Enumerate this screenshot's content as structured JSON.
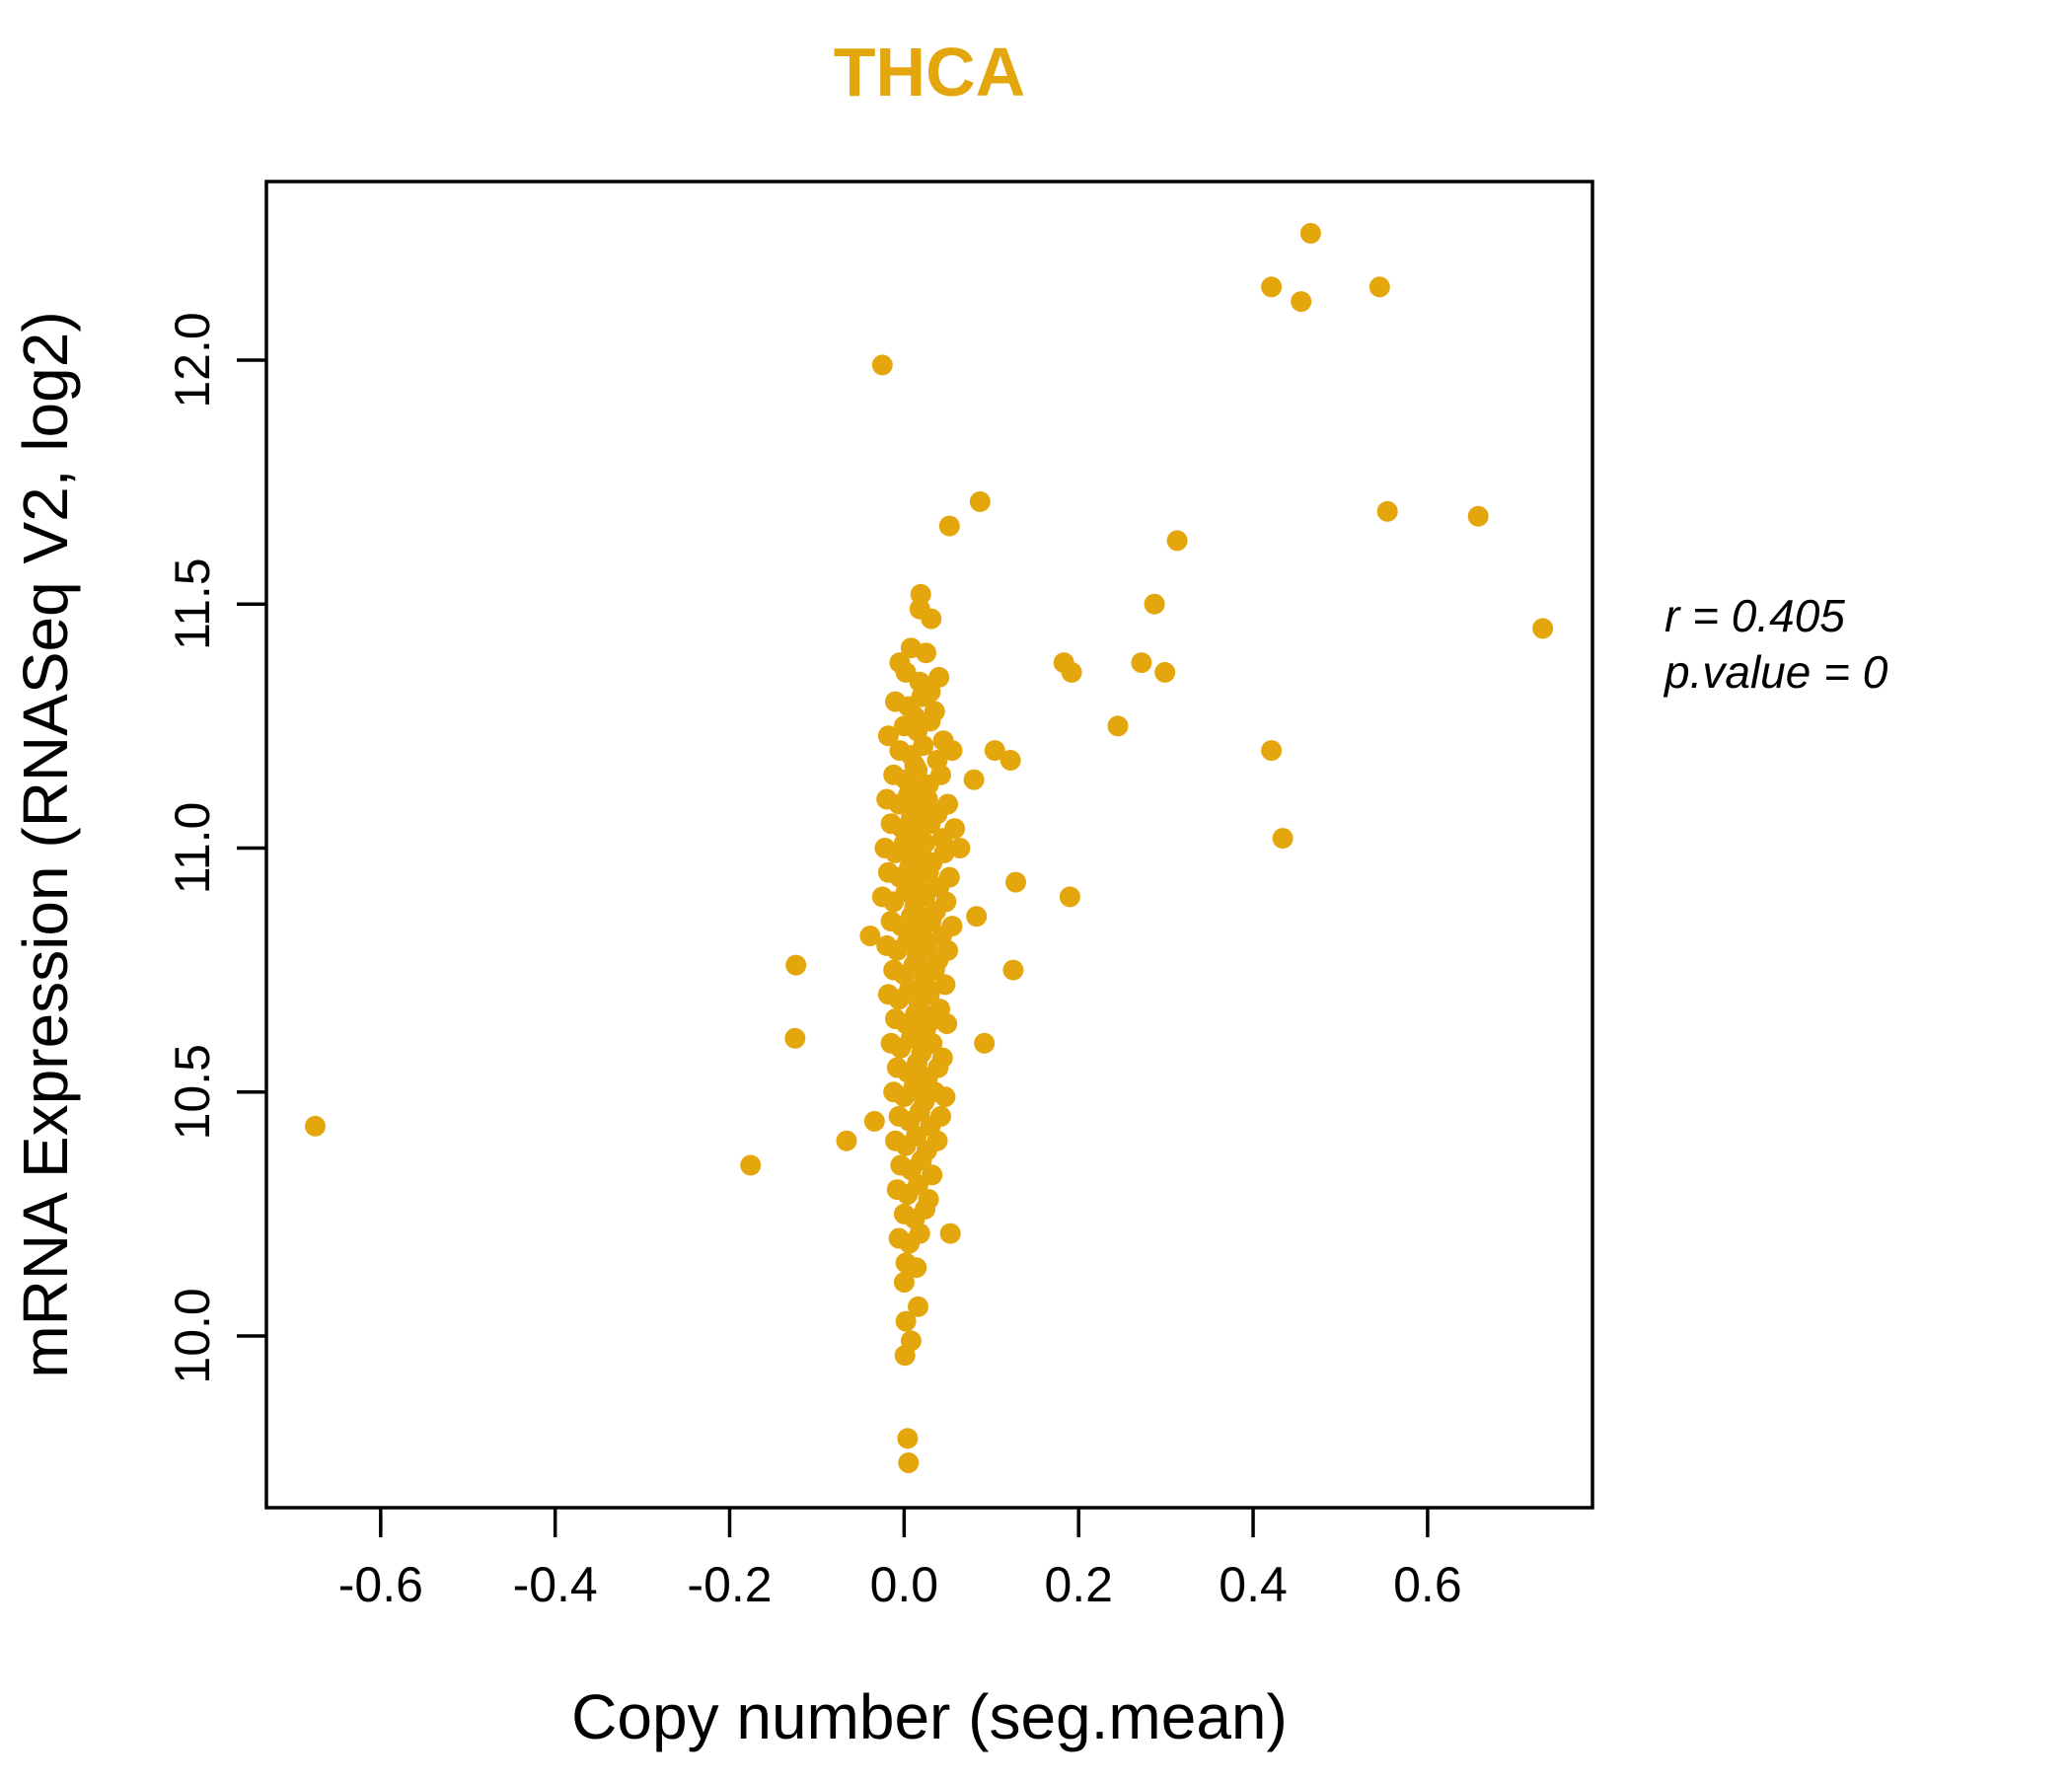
{
  "chart_data": {
    "type": "scatter",
    "title": "THCA",
    "title_color": "#E4A60D",
    "xlabel": "Copy number (seg.mean)",
    "ylabel": "mRNA Expression (RNASeq V2, log2)",
    "xlim": [
      -0.731,
      0.789
    ],
    "ylim": [
      9.648,
      12.366
    ],
    "x_ticks": [
      -0.6,
      -0.4,
      -0.2,
      0.0,
      0.2,
      0.4,
      0.6
    ],
    "x_tick_labels": [
      "-0.6",
      "-0.4",
      "-0.2",
      "0.0",
      "0.2",
      "0.4",
      "0.6"
    ],
    "y_ticks": [
      10.0,
      10.5,
      11.0,
      11.5,
      12.0
    ],
    "y_tick_labels": [
      "10.0",
      "10.5",
      "11.0",
      "11.5",
      "12.0"
    ],
    "grid": false,
    "legend": "none",
    "point_color": "#E4A60D",
    "point_radius": 10.5,
    "correlation_r": 0.405,
    "p_value": 0,
    "annotation": {
      "r_text": "r = 0.405",
      "p_text": "p.value = 0"
    },
    "points": [
      [
        -0.675,
        10.43
      ],
      [
        -0.176,
        10.35
      ],
      [
        -0.125,
        10.61
      ],
      [
        -0.124,
        10.76
      ],
      [
        -0.066,
        10.4
      ],
      [
        -0.034,
        10.44
      ],
      [
        -0.039,
        10.82
      ],
      [
        -0.025,
        11.99
      ],
      [
        0.087,
        11.71
      ],
      [
        0.052,
        11.66
      ],
      [
        0.019,
        11.52
      ],
      [
        0.018,
        11.49
      ],
      [
        0.031,
        11.47
      ],
      [
        0.313,
        11.63
      ],
      [
        0.287,
        11.5
      ],
      [
        0.183,
        11.38
      ],
      [
        0.192,
        11.36
      ],
      [
        0.272,
        11.38
      ],
      [
        0.299,
        11.36
      ],
      [
        0.245,
        11.25
      ],
      [
        0.421,
        11.2
      ],
      [
        0.122,
        11.18
      ],
      [
        0.104,
        11.2
      ],
      [
        0.434,
        11.02
      ],
      [
        0.128,
        10.93
      ],
      [
        0.19,
        10.9
      ],
      [
        0.08,
        11.14
      ],
      [
        0.064,
        11.0
      ],
      [
        0.083,
        10.86
      ],
      [
        0.125,
        10.75
      ],
      [
        0.092,
        10.6
      ],
      [
        0.053,
        10.21
      ],
      [
        0.466,
        12.26
      ],
      [
        0.421,
        12.15
      ],
      [
        0.455,
        12.12
      ],
      [
        0.545,
        12.15
      ],
      [
        0.554,
        11.69
      ],
      [
        0.658,
        11.68
      ],
      [
        0.732,
        11.45
      ],
      [
        0.0,
        10.11
      ],
      [
        0.016,
        10.06
      ],
      [
        0.002,
        10.03
      ],
      [
        0.008,
        9.99
      ],
      [
        0.001,
        9.96
      ],
      [
        0.004,
        9.79
      ],
      [
        0.005,
        9.74
      ],
      [
        0.008,
        11.41
      ],
      [
        0.025,
        11.4
      ],
      [
        -0.005,
        11.38
      ],
      [
        0.002,
        11.36
      ],
      [
        0.018,
        11.34
      ],
      [
        0.04,
        11.35
      ],
      [
        0.03,
        11.32
      ],
      [
        -0.01,
        11.3
      ],
      [
        0.005,
        11.29
      ],
      [
        0.02,
        11.31
      ],
      [
        0.035,
        11.28
      ],
      [
        0.012,
        11.27
      ],
      [
        0.0,
        11.25
      ],
      [
        0.015,
        11.24
      ],
      [
        0.03,
        11.26
      ],
      [
        -0.018,
        11.23
      ],
      [
        0.045,
        11.22
      ],
      [
        -0.005,
        11.2
      ],
      [
        0.008,
        11.19
      ],
      [
        0.022,
        11.21
      ],
      [
        0.038,
        11.18
      ],
      [
        0.012,
        11.17
      ],
      [
        0.055,
        11.2
      ],
      [
        -0.012,
        11.15
      ],
      [
        0.002,
        11.14
      ],
      [
        0.015,
        11.16
      ],
      [
        0.028,
        11.13
      ],
      [
        0.042,
        11.15
      ],
      [
        0.02,
        11.12
      ],
      [
        0.008,
        11.11
      ],
      [
        -0.02,
        11.1
      ],
      [
        -0.006,
        11.09
      ],
      [
        0.005,
        11.11
      ],
      [
        0.016,
        11.08
      ],
      [
        0.027,
        11.1
      ],
      [
        0.038,
        11.07
      ],
      [
        0.05,
        11.09
      ],
      [
        0.01,
        11.06
      ],
      [
        -0.015,
        11.05
      ],
      [
        -0.002,
        11.04
      ],
      [
        0.008,
        11.06
      ],
      [
        0.018,
        11.03
      ],
      [
        0.03,
        11.05
      ],
      [
        0.044,
        11.02
      ],
      [
        0.024,
        11.01
      ],
      [
        0.058,
        11.04
      ],
      [
        -0.022,
        11.0
      ],
      [
        -0.01,
        10.99
      ],
      [
        0.0,
        11.01
      ],
      [
        0.01,
        10.98
      ],
      [
        0.02,
        11.0
      ],
      [
        0.032,
        10.97
      ],
      [
        0.046,
        10.99
      ],
      [
        0.026,
        10.96
      ],
      [
        0.015,
        10.95
      ],
      [
        -0.018,
        10.95
      ],
      [
        -0.005,
        10.94
      ],
      [
        0.006,
        10.96
      ],
      [
        0.016,
        10.93
      ],
      [
        0.028,
        10.95
      ],
      [
        0.04,
        10.92
      ],
      [
        0.052,
        10.94
      ],
      [
        0.022,
        10.91
      ],
      [
        0.012,
        10.9
      ],
      [
        -0.025,
        10.9
      ],
      [
        -0.012,
        10.89
      ],
      [
        0.002,
        10.91
      ],
      [
        0.012,
        10.88
      ],
      [
        0.024,
        10.9
      ],
      [
        0.036,
        10.87
      ],
      [
        0.048,
        10.89
      ],
      [
        0.018,
        10.86
      ],
      [
        0.03,
        10.85
      ],
      [
        -0.015,
        10.85
      ],
      [
        -0.003,
        10.84
      ],
      [
        0.008,
        10.86
      ],
      [
        0.019,
        10.83
      ],
      [
        0.031,
        10.85
      ],
      [
        0.043,
        10.82
      ],
      [
        0.025,
        10.81
      ],
      [
        0.055,
        10.84
      ],
      [
        -0.02,
        10.8
      ],
      [
        -0.008,
        10.79
      ],
      [
        0.004,
        10.81
      ],
      [
        0.015,
        10.78
      ],
      [
        0.027,
        10.8
      ],
      [
        0.039,
        10.77
      ],
      [
        0.021,
        10.76
      ],
      [
        0.05,
        10.79
      ],
      [
        -0.012,
        10.75
      ],
      [
        0.0,
        10.74
      ],
      [
        0.011,
        10.76
      ],
      [
        0.023,
        10.73
      ],
      [
        0.035,
        10.75
      ],
      [
        0.047,
        10.72
      ],
      [
        0.028,
        10.71
      ],
      [
        -0.018,
        10.7
      ],
      [
        -0.006,
        10.69
      ],
      [
        0.006,
        10.71
      ],
      [
        0.017,
        10.68
      ],
      [
        0.029,
        10.7
      ],
      [
        0.041,
        10.67
      ],
      [
        0.022,
        10.66
      ],
      [
        -0.01,
        10.65
      ],
      [
        0.002,
        10.64
      ],
      [
        0.013,
        10.66
      ],
      [
        0.025,
        10.63
      ],
      [
        0.037,
        10.65
      ],
      [
        0.019,
        10.62
      ],
      [
        0.049,
        10.64
      ],
      [
        -0.015,
        10.6
      ],
      [
        -0.004,
        10.59
      ],
      [
        0.008,
        10.61
      ],
      [
        0.02,
        10.58
      ],
      [
        0.032,
        10.6
      ],
      [
        0.044,
        10.57
      ],
      [
        -0.008,
        10.55
      ],
      [
        0.004,
        10.54
      ],
      [
        0.015,
        10.56
      ],
      [
        0.027,
        10.53
      ],
      [
        0.039,
        10.55
      ],
      [
        0.021,
        10.52
      ],
      [
        -0.012,
        10.5
      ],
      [
        0.0,
        10.49
      ],
      [
        0.011,
        10.51
      ],
      [
        0.023,
        10.48
      ],
      [
        0.035,
        10.5
      ],
      [
        0.047,
        10.49
      ],
      [
        -0.006,
        10.45
      ],
      [
        0.006,
        10.44
      ],
      [
        0.018,
        10.46
      ],
      [
        0.03,
        10.43
      ],
      [
        0.042,
        10.45
      ],
      [
        -0.01,
        10.4
      ],
      [
        0.002,
        10.39
      ],
      [
        0.014,
        10.41
      ],
      [
        0.026,
        10.38
      ],
      [
        0.038,
        10.4
      ],
      [
        -0.004,
        10.35
      ],
      [
        0.008,
        10.34
      ],
      [
        0.02,
        10.36
      ],
      [
        0.032,
        10.33
      ],
      [
        -0.008,
        10.3
      ],
      [
        0.004,
        10.29
      ],
      [
        0.016,
        10.31
      ],
      [
        0.028,
        10.28
      ],
      [
        0.0,
        10.25
      ],
      [
        0.012,
        10.24
      ],
      [
        0.024,
        10.26
      ],
      [
        -0.006,
        10.2
      ],
      [
        0.006,
        10.19
      ],
      [
        0.018,
        10.21
      ],
      [
        0.002,
        10.15
      ],
      [
        0.014,
        10.14
      ]
    ]
  }
}
